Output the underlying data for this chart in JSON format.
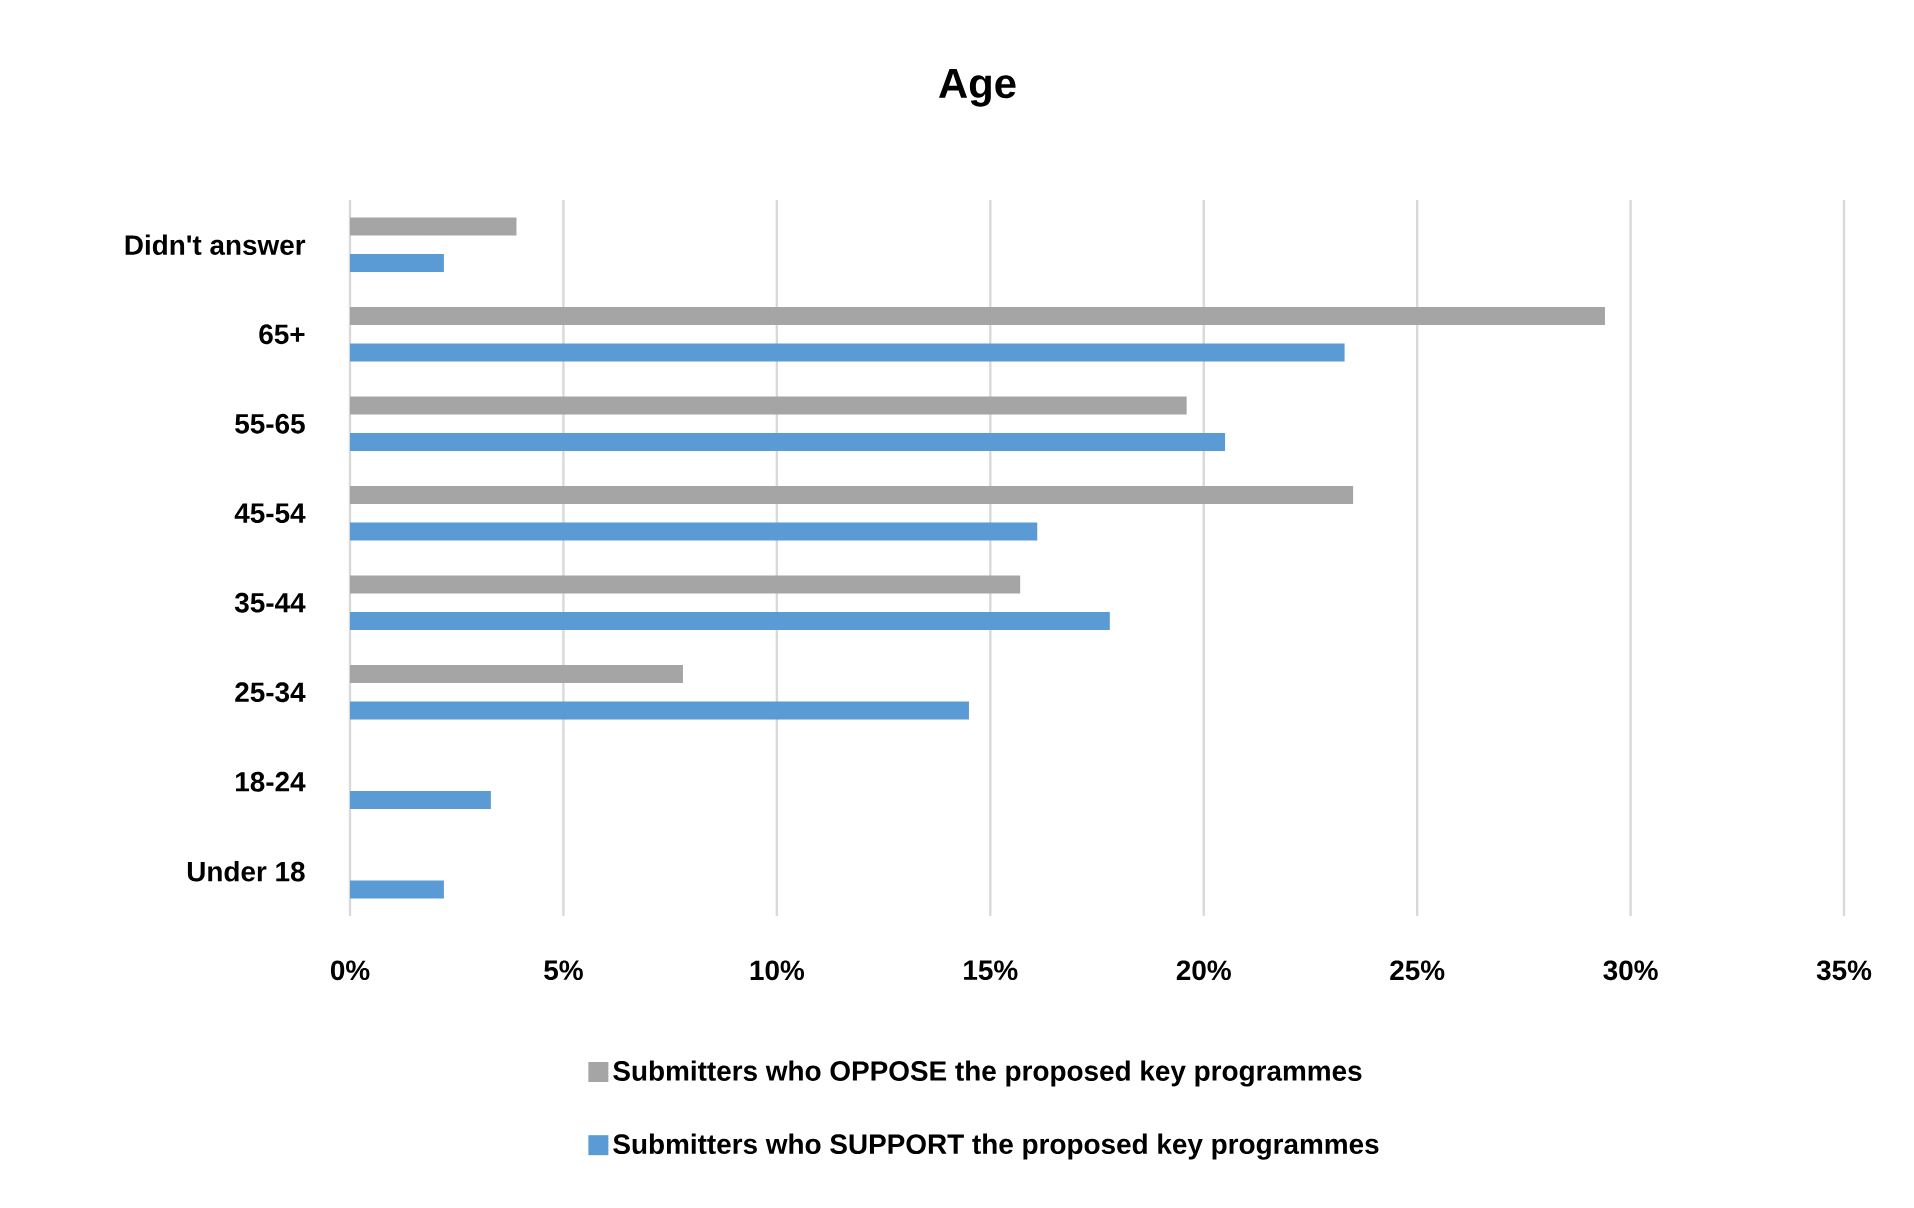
{
  "chart_data": {
    "type": "bar",
    "orientation": "horizontal",
    "title": "Age",
    "categories": [
      "Didn't answer",
      "65+",
      "55-65",
      "45-54",
      "35-44",
      "25-34",
      "18-24",
      "Under 18"
    ],
    "series": [
      {
        "name": "Submitters who OPPOSE the proposed key programmes",
        "color": "#a5a5a5",
        "values": [
          3.9,
          29.4,
          19.6,
          23.5,
          15.7,
          7.8,
          null,
          null
        ]
      },
      {
        "name": "Submitters who SUPPORT the proposed key programmes",
        "color": "#5b9bd5",
        "values": [
          2.2,
          23.3,
          20.5,
          16.1,
          17.8,
          14.5,
          3.3,
          2.2
        ]
      }
    ],
    "xlim": [
      0,
      35
    ],
    "xticks": [
      {
        "value": 0,
        "label": "0%"
      },
      {
        "value": 5,
        "label": "5%"
      },
      {
        "value": 10,
        "label": "10%"
      },
      {
        "value": 15,
        "label": "15%"
      },
      {
        "value": 20,
        "label": "20%"
      },
      {
        "value": 25,
        "label": "25%"
      },
      {
        "value": 30,
        "label": "30%"
      },
      {
        "value": 35,
        "label": "35%"
      }
    ],
    "grid": "x",
    "legend": "bottom"
  }
}
